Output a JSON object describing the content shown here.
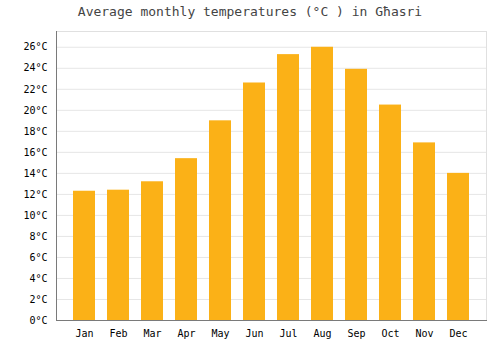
{
  "chart_data": {
    "type": "bar",
    "title": "Average monthly temperatures (°C ) in Għasri",
    "categories": [
      "Jan",
      "Feb",
      "Mar",
      "Apr",
      "May",
      "Jun",
      "Jul",
      "Aug",
      "Sep",
      "Oct",
      "Nov",
      "Dec"
    ],
    "values": [
      12.3,
      12.4,
      13.2,
      15.4,
      19.0,
      22.6,
      25.3,
      26.0,
      23.9,
      20.5,
      16.9,
      14.0
    ],
    "color": "#FBB117",
    "ylim": [
      0,
      27.5
    ],
    "yticks": [
      {
        "value": 0,
        "label": "0°C"
      },
      {
        "value": 2,
        "label": "2°C"
      },
      {
        "value": 4,
        "label": "4°C"
      },
      {
        "value": 6,
        "label": "6°C"
      },
      {
        "value": 8,
        "label": "8°C"
      },
      {
        "value": 10,
        "label": "10°C"
      },
      {
        "value": 12,
        "label": "12°C"
      },
      {
        "value": 14,
        "label": "14°C"
      },
      {
        "value": 16,
        "label": "16°C"
      },
      {
        "value": 18,
        "label": "18°C"
      },
      {
        "value": 20,
        "label": "20°C"
      },
      {
        "value": 22,
        "label": "22°C"
      },
      {
        "value": 24,
        "label": "24°C"
      },
      {
        "value": 26,
        "label": "26°C"
      }
    ],
    "grid": true
  }
}
